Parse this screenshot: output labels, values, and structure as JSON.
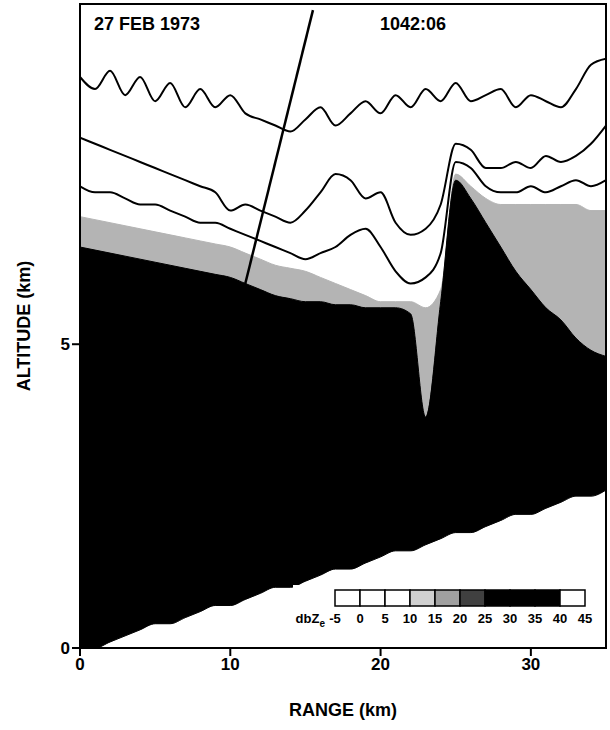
{
  "chart_data": {
    "type": "area",
    "title": "27 FEB 1973",
    "subtitle": "1042:06",
    "x_label": "RANGE (km)",
    "y_label": "ALTITUDE (km)",
    "xlim": [
      0,
      35
    ],
    "ylim": [
      0,
      10.6
    ],
    "xticks": [
      0,
      10,
      20,
      30
    ],
    "yticks": [
      0,
      5
    ],
    "x": [
      0,
      1,
      2,
      3,
      4,
      5,
      6,
      7,
      8,
      9,
      10,
      11,
      12,
      13,
      14,
      15,
      16,
      17,
      18,
      19,
      20,
      21,
      22,
      23,
      24,
      25,
      26,
      27,
      28,
      29,
      30,
      31,
      32,
      33,
      34,
      35
    ],
    "base": [
      0,
      0,
      0.1,
      0.2,
      0.3,
      0.4,
      0.4,
      0.5,
      0.6,
      0.7,
      0.7,
      0.8,
      0.9,
      1.0,
      1.0,
      1.1,
      1.2,
      1.3,
      1.3,
      1.4,
      1.5,
      1.6,
      1.6,
      1.7,
      1.8,
      1.9,
      1.9,
      2.0,
      2.1,
      2.2,
      2.2,
      2.3,
      2.4,
      2.5,
      2.5,
      2.6
    ],
    "series": [
      {
        "type": "area",
        "color": "#b4b4b4",
        "values": [
          7.1,
          7.05,
          7.0,
          6.95,
          6.9,
          6.85,
          6.8,
          6.75,
          6.7,
          6.65,
          6.6,
          6.5,
          6.4,
          6.3,
          6.25,
          6.2,
          6.1,
          6.0,
          5.9,
          5.8,
          5.7,
          5.7,
          5.7,
          5.6,
          5.9,
          7.8,
          7.6,
          7.4,
          7.3,
          7.3,
          7.3,
          7.3,
          7.3,
          7.3,
          7.2,
          7.2
        ]
      },
      {
        "type": "area",
        "color": "#000000",
        "values": [
          6.6,
          6.55,
          6.5,
          6.45,
          6.4,
          6.35,
          6.3,
          6.25,
          6.2,
          6.15,
          6.1,
          6.0,
          5.9,
          5.8,
          5.75,
          5.7,
          5.7,
          5.65,
          5.65,
          5.6,
          5.6,
          5.6,
          5.5,
          3.8,
          5.7,
          7.7,
          7.4,
          7.0,
          6.6,
          6.2,
          5.9,
          5.6,
          5.4,
          5.1,
          4.9,
          4.8
        ]
      },
      {
        "type": "line",
        "color": "#000000",
        "values": [
          7.6,
          7.5,
          7.5,
          7.4,
          7.3,
          7.3,
          7.2,
          7.1,
          7.0,
          7.0,
          6.9,
          6.8,
          6.7,
          6.6,
          6.5,
          6.4,
          6.5,
          6.6,
          6.8,
          6.9,
          6.6,
          6.2,
          6.0,
          6.1,
          6.5,
          8.0,
          7.9,
          7.6,
          7.5,
          7.5,
          7.6,
          7.5,
          7.6,
          7.7,
          7.6,
          7.7
        ]
      },
      {
        "type": "line",
        "color": "#000000",
        "values": [
          8.4,
          8.3,
          8.2,
          8.1,
          8.0,
          7.9,
          7.8,
          7.7,
          7.6,
          7.5,
          7.2,
          7.3,
          7.2,
          7.1,
          7.0,
          7.2,
          7.5,
          7.8,
          7.7,
          7.4,
          7.5,
          7.0,
          6.8,
          6.9,
          7.3,
          8.3,
          8.2,
          7.9,
          7.9,
          8.0,
          7.9,
          8.1,
          8.0,
          8.1,
          8.3,
          8.6
        ]
      },
      {
        "type": "line",
        "color": "#000000",
        "values": [
          9.4,
          9.2,
          9.5,
          9.1,
          9.4,
          9.0,
          9.3,
          8.9,
          9.2,
          8.9,
          9.1,
          8.8,
          8.7,
          8.6,
          8.5,
          8.7,
          8.9,
          8.6,
          8.8,
          9.0,
          8.8,
          9.1,
          8.9,
          9.2,
          9.0,
          9.3,
          9.0,
          9.1,
          9.2,
          8.9,
          9.1,
          9.0,
          8.9,
          9.2,
          9.6,
          9.7
        ]
      },
      {
        "type": "line",
        "color": "#000000",
        "x": [
          10.7,
          15.5
        ],
        "values": [
          5.7,
          10.5
        ]
      }
    ],
    "colorbar": {
      "label": "dbZe",
      "range": [
        -5,
        45
      ],
      "ticks": [
        -5,
        0,
        5,
        10,
        15,
        20,
        25,
        30,
        35,
        40,
        45
      ],
      "colors": [
        "#ffffff",
        "#ffffff",
        "#ffffff",
        "#d0d0d0",
        "#a0a0a0",
        "#404040",
        "#000000",
        "#000000",
        "#000000",
        "#ffffff"
      ]
    }
  }
}
